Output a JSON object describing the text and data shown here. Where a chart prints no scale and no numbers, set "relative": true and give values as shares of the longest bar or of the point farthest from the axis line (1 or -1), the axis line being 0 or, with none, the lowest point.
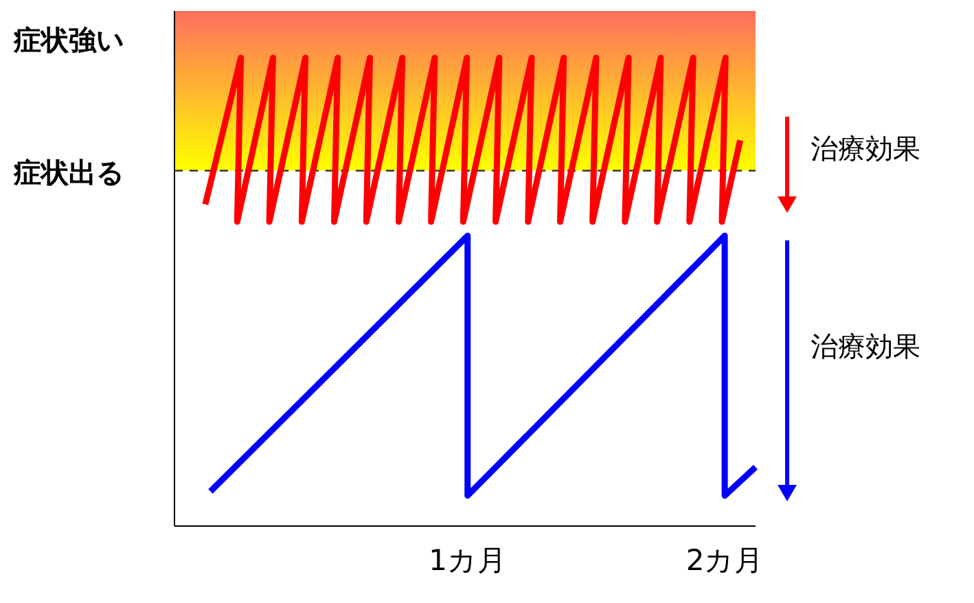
{
  "chart_data": {
    "type": "line",
    "relative": true,
    "line_style": "solid",
    "marker": "none",
    "xlim": [
      -0.14,
      2.12
    ],
    "xticks": [
      {
        "value": 1,
        "label": "1カ月"
      },
      {
        "value": 2,
        "label": "2カ月"
      }
    ],
    "tick_labels": "x",
    "series": [
      {
        "color": "#ff0000",
        "x": [
          -0.02,
          0.118,
          0.104,
          0.243,
          0.229,
          0.369,
          0.355,
          0.495,
          0.481,
          0.62,
          0.606,
          0.746,
          0.732,
          0.872,
          0.858,
          0.997,
          0.983,
          1.123,
          1.109,
          1.249,
          1.235,
          1.374,
          1.36,
          1.5,
          1.486,
          1.626,
          1.612,
          1.751,
          1.737,
          1.877,
          1.863,
          2.003,
          1.989,
          2.06
        ],
        "values": [
          0.687,
          1,
          0.65,
          1,
          0.65,
          1,
          0.65,
          1,
          0.65,
          1,
          0.65,
          1,
          0.65,
          1,
          0.65,
          1,
          0.65,
          1,
          0.65,
          1,
          0.65,
          1,
          0.65,
          1,
          0.65,
          1,
          0.65,
          1,
          0.65,
          1,
          0.65,
          1,
          0.65,
          0.824
        ]
      },
      {
        "color": "#0000ff",
        "x": [
          0,
          1,
          1,
          2,
          2,
          2.12
        ],
        "values": [
          0.074,
          0.62,
          0.065,
          0.62,
          0.065,
          0.126
        ]
      }
    ],
    "ref_lines": [
      {
        "axis": "y",
        "value": 0.759,
        "label": "症状出る",
        "color": "#333333",
        "line_style": "dashed"
      }
    ],
    "bands": [
      {
        "axis": "y",
        "from": 0.759,
        "to": 1.1,
        "label": "症状強い",
        "color": "#ff6f5e"
      }
    ],
    "annotations": [
      "治療効果",
      "治療効果"
    ]
  }
}
